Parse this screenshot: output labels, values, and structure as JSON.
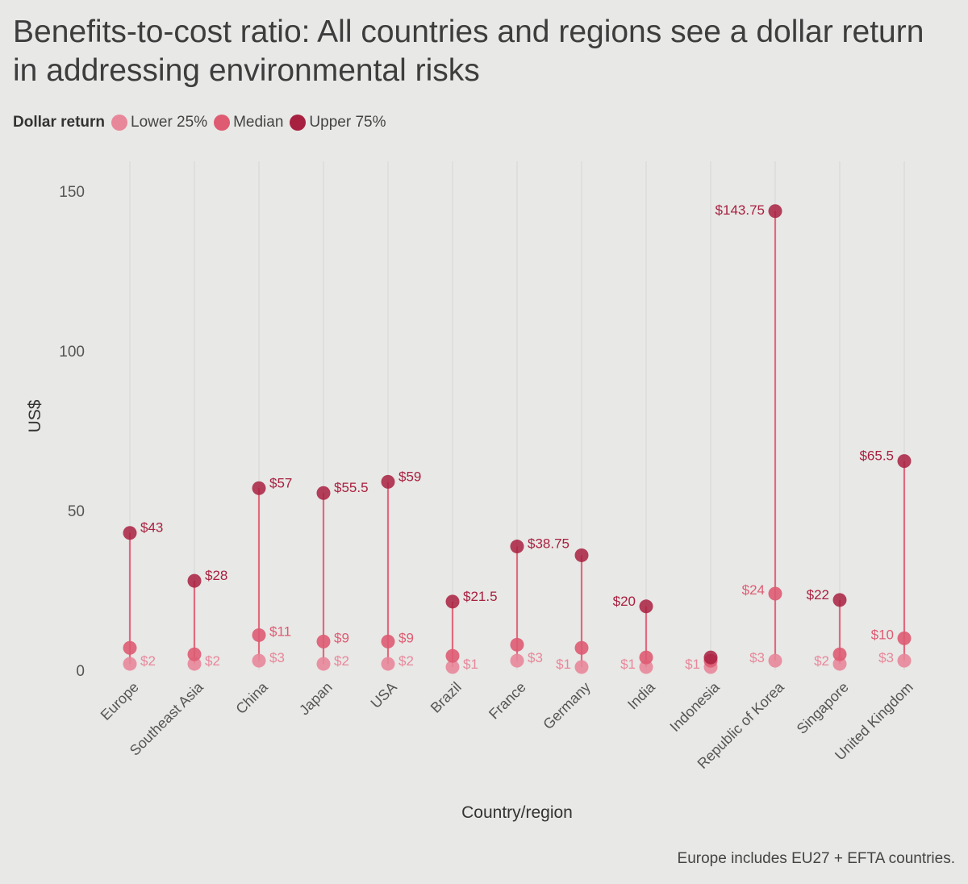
{
  "title": "Benefits-to-cost ratio: All countries and regions see a dollar return in addressing environmental risks",
  "legend": {
    "title": "Dollar return",
    "items": [
      {
        "label": "Lower 25%",
        "color": "#e8879a"
      },
      {
        "label": "Median",
        "color": "#de5b72"
      },
      {
        "label": "Upper 75%",
        "color": "#a8203f"
      }
    ]
  },
  "footnote": "Europe includes EU27 + EFTA countries.",
  "chart_data": {
    "type": "dumbbell",
    "xlabel": "Country/region",
    "ylabel": "US$",
    "ylim": [
      0,
      150
    ],
    "yticks": [
      0,
      50,
      100,
      150
    ],
    "grid": "vertical lines per category",
    "categories": [
      "Europe",
      "Southeast Asia",
      "China",
      "Japan",
      "USA",
      "Brazil",
      "France",
      "Germany",
      "India",
      "Indonesia",
      "Republic of Korea",
      "Singapore",
      "United Kingdom"
    ],
    "series": [
      {
        "name": "Lower 25%",
        "color": "#e8879a",
        "values": [
          2,
          2,
          3,
          2,
          2,
          1,
          3,
          1,
          1,
          1,
          3,
          2,
          3
        ],
        "labels": [
          "$2",
          "$2",
          "$3",
          "$2",
          "$2",
          "$1",
          "$3",
          "$1",
          "$1",
          "$1",
          "$3",
          "$2",
          "$3"
        ]
      },
      {
        "name": "Median",
        "color": "#de5b72",
        "values": [
          7,
          5,
          11,
          9,
          9,
          4.5,
          8,
          7,
          4,
          3,
          24,
          5,
          10
        ],
        "labels": [
          "",
          "",
          "$11",
          "$9",
          "$9",
          "",
          "",
          "",
          "",
          "",
          "$24",
          "",
          "$10"
        ]
      },
      {
        "name": "Upper 75%",
        "color": "#a8203f",
        "values": [
          43,
          28,
          57,
          55.5,
          59,
          21.5,
          38.75,
          36,
          20,
          4,
          143.75,
          22,
          65.5
        ],
        "labels": [
          "$43",
          "$28",
          "$57",
          "$55.5",
          "$59",
          "$21.5",
          "$38.75",
          "",
          "$20",
          "",
          "$143.75",
          "$22",
          "$65.5"
        ]
      }
    ]
  }
}
